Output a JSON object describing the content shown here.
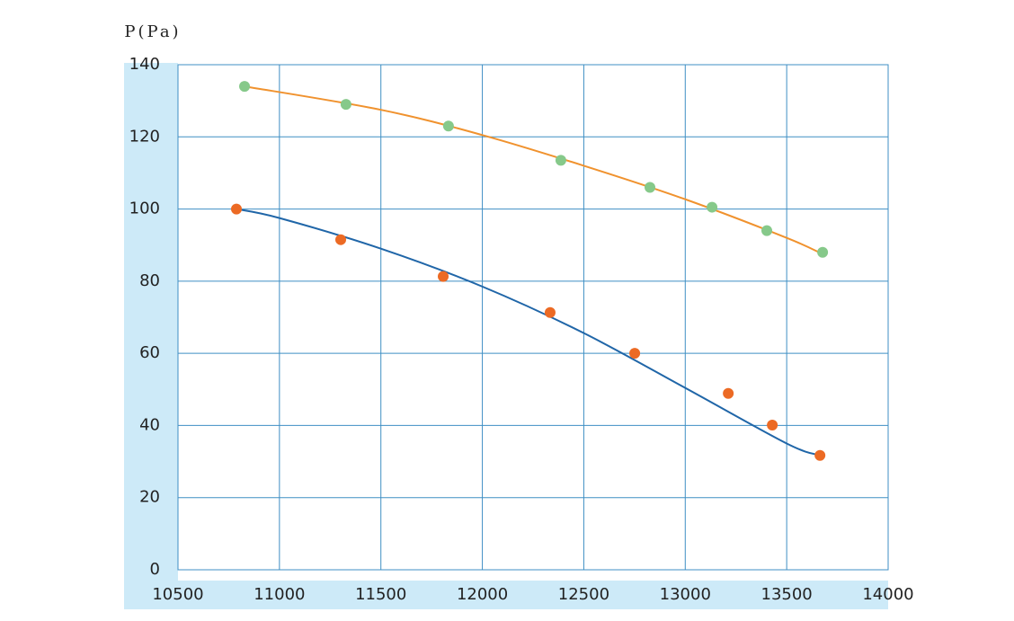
{
  "chart_data": {
    "type": "scatter",
    "title": "P(Pa)",
    "xlim": [
      10500,
      14000
    ],
    "xticks": [
      10500,
      11000,
      11500,
      12000,
      12500,
      13000,
      13500,
      14000
    ],
    "ylim": [
      0,
      140
    ],
    "yticks": [
      0,
      20,
      40,
      60,
      80,
      100,
      120,
      140
    ],
    "grid": true,
    "series": [
      {
        "mark": "line",
        "color": "#f0922e",
        "x": [
          10828,
          11500,
          12000,
          12500,
          13000,
          13500,
          13677
        ],
        "values": [
          134,
          127.5,
          120.5,
          112,
          102.7,
          92,
          87.5
        ]
      },
      {
        "mark": "line",
        "color": "#2066a8",
        "x": [
          10788,
          11000,
          11500,
          12000,
          12500,
          13000,
          13500,
          13664
        ],
        "values": [
          100,
          97.5,
          89,
          78.5,
          65.6,
          50.4,
          35,
          31.7
        ]
      },
      {
        "mark": "point",
        "color": "#86c98a",
        "x": [
          10828,
          11328,
          11833,
          12387,
          12826,
          13132,
          13402,
          13677
        ],
        "values": [
          134,
          129,
          123,
          113.5,
          106,
          100.5,
          94,
          88
        ]
      },
      {
        "mark": "point",
        "color": "#ec6a24",
        "x": [
          10788,
          11302,
          11807,
          12334,
          12751,
          13212,
          13429,
          13664
        ],
        "values": [
          100,
          91.5,
          81.3,
          71.3,
          60,
          48.9,
          40.1,
          31.7
        ]
      }
    ]
  }
}
